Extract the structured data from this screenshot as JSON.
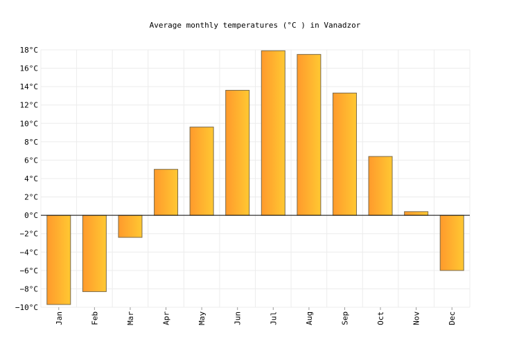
{
  "chart_data": {
    "type": "bar",
    "title": "Average monthly temperatures (°C ) in Vanadzor",
    "xlabel": "",
    "ylabel": "",
    "categories": [
      "Jan",
      "Feb",
      "Mar",
      "Apr",
      "May",
      "Jun",
      "Jul",
      "Aug",
      "Sep",
      "Oct",
      "Nov",
      "Dec"
    ],
    "values": [
      -9.7,
      -8.3,
      -2.4,
      5.0,
      9.6,
      13.6,
      17.9,
      17.5,
      13.3,
      6.4,
      0.4,
      -6.0
    ],
    "ylim": [
      -10,
      18
    ],
    "yticks": [
      18,
      16,
      14,
      12,
      10,
      8,
      6,
      4,
      2,
      0,
      -2,
      -4,
      -6,
      -8,
      -10
    ],
    "ytick_labels": [
      "18°C",
      "16°C",
      "14°C",
      "12°C",
      "10°C",
      "8°C",
      "6°C",
      "4°C",
      "2°C",
      "0°C",
      "−2°C",
      "−4°C",
      "−6°C",
      "−8°C",
      "−10°C"
    ],
    "grid": true,
    "legend": "none",
    "colors": {
      "bar_gradient_start": "#ff9a2c",
      "bar_gradient_end": "#ffc832",
      "bar_border": "#7a6a4a",
      "grid": "#ececec",
      "zero_line": "#000000"
    }
  }
}
